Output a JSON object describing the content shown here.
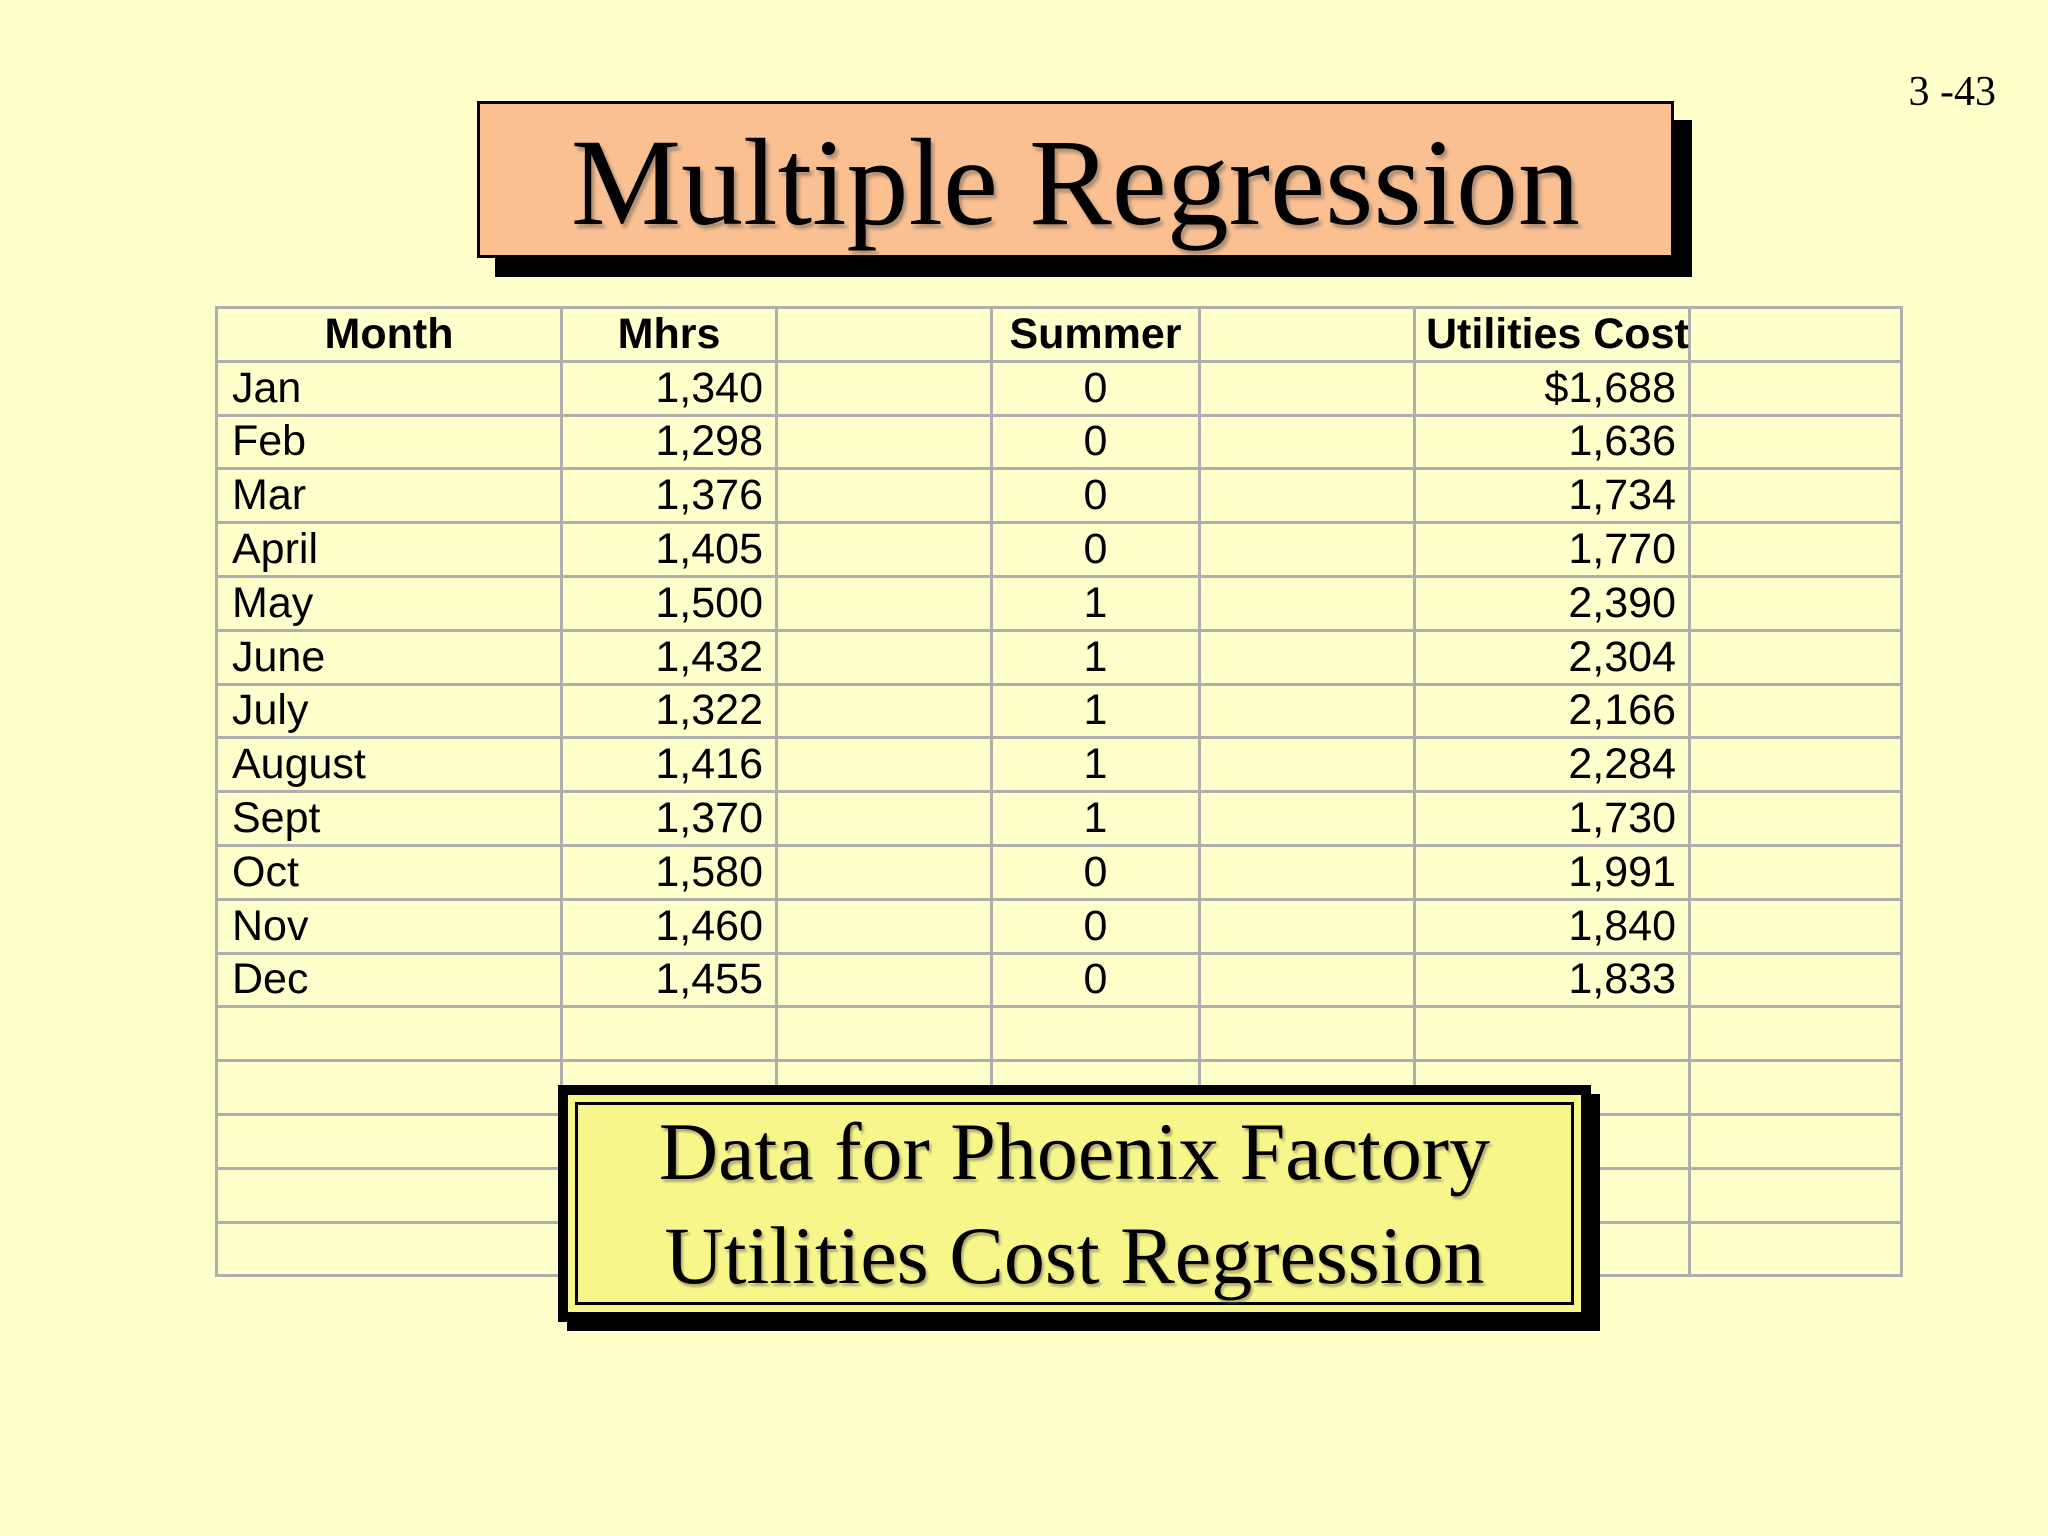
{
  "page": {
    "number": "3 -43"
  },
  "title": {
    "text": "Multiple Regression"
  },
  "table": {
    "headers": [
      "Month",
      "Mhrs",
      "",
      "Summer",
      "",
      "Utilities Cost",
      ""
    ],
    "rows": [
      [
        "Jan",
        "1,340",
        "",
        "0",
        "",
        "$1,688",
        ""
      ],
      [
        "Feb",
        "1,298",
        "",
        "0",
        "",
        "1,636",
        ""
      ],
      [
        "Mar",
        "1,376",
        "",
        "0",
        "",
        "1,734",
        ""
      ],
      [
        "April",
        "1,405",
        "",
        "0",
        "",
        "1,770",
        ""
      ],
      [
        "May",
        "1,500",
        "",
        "1",
        "",
        "2,390",
        ""
      ],
      [
        "June",
        "1,432",
        "",
        "1",
        "",
        "2,304",
        ""
      ],
      [
        "July",
        "1,322",
        "",
        "1",
        "",
        "2,166",
        ""
      ],
      [
        "August",
        "1,416",
        "",
        "1",
        "",
        "2,284",
        ""
      ],
      [
        "Sept",
        "1,370",
        "",
        "1",
        "",
        "1,730",
        ""
      ],
      [
        "Oct",
        "1,580",
        "",
        "0",
        "",
        "1,991",
        ""
      ],
      [
        "Nov",
        "1,460",
        "",
        "0",
        "",
        "1,840",
        ""
      ],
      [
        "Dec",
        "1,455",
        "",
        "0",
        "",
        "1,833",
        ""
      ]
    ],
    "empty_rows": 5
  },
  "callout": {
    "line1": "Data for Phoenix Factory",
    "line2": "Utilities Cost Regression"
  },
  "colors": {
    "bg": "#FFFFCC",
    "grid": "#AFAFAF",
    "title_fill": "#FAC092",
    "callout_fill": "#F6F68A",
    "ink": "#000000",
    "shadow": "#000000"
  }
}
